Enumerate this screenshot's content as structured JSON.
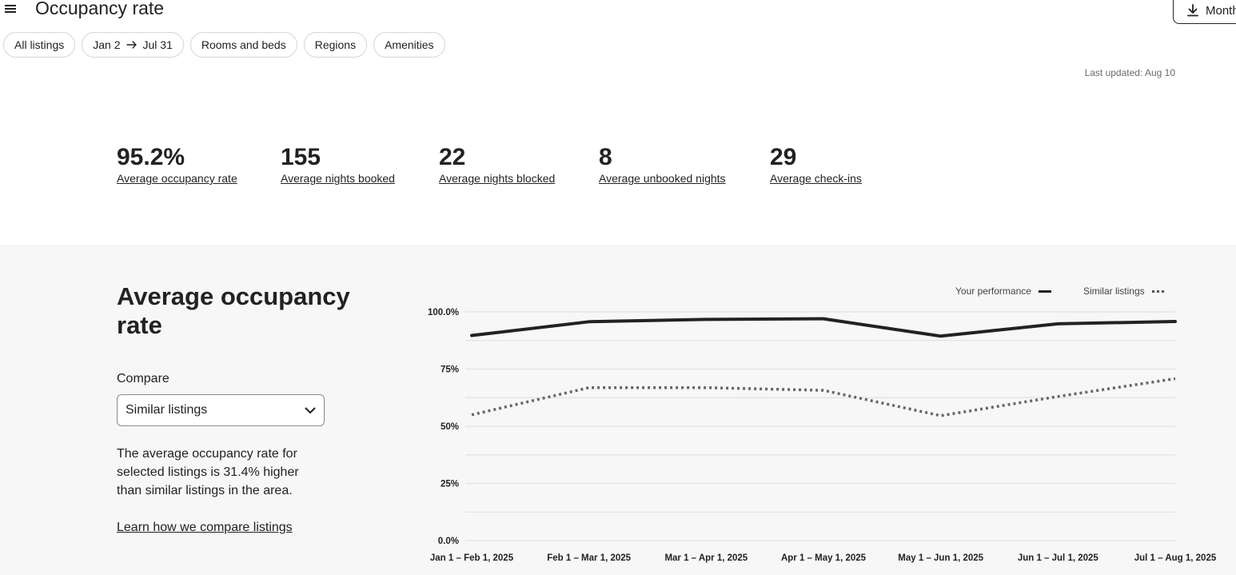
{
  "header": {
    "title": "Occupancy rate",
    "monthly_button_label": "Monthl"
  },
  "filters": [
    {
      "label": "All listings"
    },
    {
      "label_start": "Jan 2",
      "label_end": "Jul 31"
    },
    {
      "label": "Rooms and beds"
    },
    {
      "label": "Regions"
    },
    {
      "label": "Amenities"
    }
  ],
  "last_updated": "Last updated: Aug 10",
  "stats": [
    {
      "value": "95.2%",
      "label": "Average occupancy rate"
    },
    {
      "value": "155",
      "label": "Average nights booked"
    },
    {
      "value": "22",
      "label": "Average nights blocked"
    },
    {
      "value": "8",
      "label": "Average unbooked nights"
    },
    {
      "value": "29",
      "label": "Average check-ins"
    }
  ],
  "section": {
    "title": "Average occupancy rate",
    "compare_label": "Compare",
    "compare_value": "Similar listings",
    "description": "The average occupancy rate for selected listings is 31.4% higher than similar listings in the area.",
    "learn_link": "Learn how we compare listings"
  },
  "legend": {
    "your_performance": "Your performance",
    "similar_listings": "Similar listings"
  },
  "chart_data": {
    "type": "line",
    "categories": [
      "Jan 1 – Feb 1, 2025",
      "Feb 1 – Mar 1, 2025",
      "Mar 1 – Apr 1, 2025",
      "Apr 1 – May 1, 2025",
      "May 1 – Jun 1, 2025",
      "Jun 1 – Jul 1, 2025",
      "Jul 1 – Aug 1, 2025"
    ],
    "y_ticks": [
      "0.0%",
      "25%",
      "50%",
      "75%",
      "100.0%"
    ],
    "ylim": [
      0,
      100
    ],
    "grid": true,
    "legend_position": "top-right",
    "series": [
      {
        "name": "Your performance",
        "style": "solid",
        "color": "#222222",
        "values": [
          89.7,
          95.7,
          96.7,
          97.0,
          89.4,
          94.8,
          95.8
        ]
      },
      {
        "name": "Similar listings",
        "style": "dotted",
        "color": "#666666",
        "values": [
          55.0,
          66.9,
          66.9,
          65.7,
          54.6,
          63.0,
          70.8
        ]
      }
    ]
  }
}
